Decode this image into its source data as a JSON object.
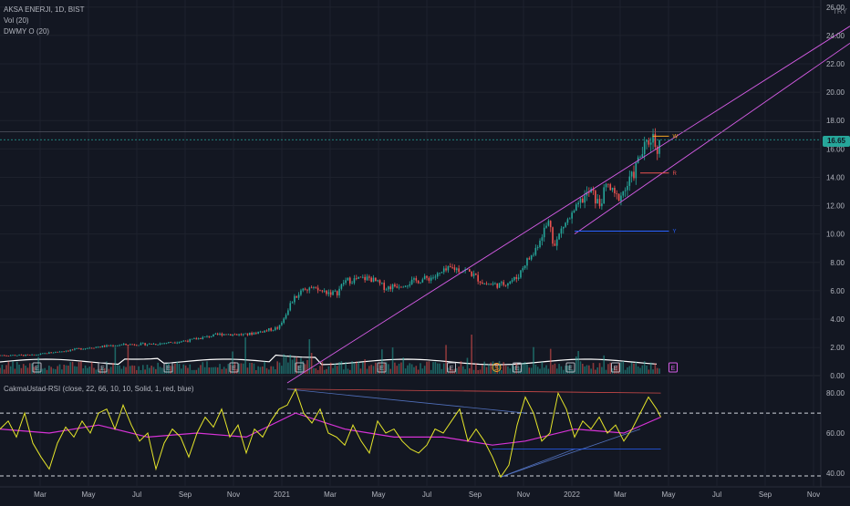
{
  "header": {
    "symbol_line": "AKSA ENERJI, 1D, BIST",
    "vol_line": "Vol (20)",
    "dwmy_line": "DWMY O (20)",
    "rsi_line": "CakmaUstad-RSI (close, 22, 66, 10, 10, Solid, 1, red, blue)",
    "currency": "TRY",
    "last_price": "16.65"
  },
  "colors": {
    "background": "#131722",
    "axis_text": "#b2b5be",
    "grid": "#1e222d",
    "up": "#26a69a",
    "down": "#ef5350",
    "channel": "#d65ce6",
    "ma": "#ffffff",
    "rsi": "#e6e62a",
    "rsi_ma": "#d633d6",
    "level_w": "#f5a623",
    "level_r": "#ef5350",
    "level_y": "#2962ff",
    "price_badge": "#26a69a"
  },
  "chart_data": [
    {
      "type": "line",
      "name": "price",
      "x_axis": [
        "Mar",
        "May",
        "Jul",
        "Sep",
        "Nov",
        "2021",
        "Mar",
        "May",
        "Jul",
        "Sep",
        "Nov",
        "2022",
        "Mar",
        "May",
        "Jul",
        "Sep",
        "Nov"
      ],
      "x_range": [
        0,
        1000
      ],
      "y_ticks": [
        "26.00",
        "24.00",
        "22.00",
        "20.00",
        "18.00",
        "16.00",
        "14.00",
        "12.00",
        "10.00",
        "8.00",
        "6.00",
        "4.00",
        "2.00",
        "0.00"
      ],
      "ylim": [
        -0.5,
        26.5
      ],
      "points": [
        [
          0,
          1.45
        ],
        [
          40,
          1.45
        ],
        [
          70,
          1.7
        ],
        [
          110,
          2.0
        ],
        [
          150,
          2.2
        ],
        [
          190,
          2.25
        ],
        [
          230,
          2.5
        ],
        [
          270,
          2.95
        ],
        [
          300,
          2.9
        ],
        [
          340,
          3.4
        ],
        [
          355,
          5.2
        ],
        [
          370,
          6.2
        ],
        [
          390,
          6.0
        ],
        [
          410,
          5.8
        ],
        [
          420,
          6.7
        ],
        [
          450,
          6.9
        ],
        [
          470,
          6.2
        ],
        [
          500,
          6.6
        ],
        [
          530,
          7.0
        ],
        [
          550,
          7.6
        ],
        [
          570,
          7.4
        ],
        [
          590,
          6.5
        ],
        [
          610,
          6.4
        ],
        [
          630,
          6.9
        ],
        [
          640,
          8.0
        ],
        [
          650,
          8.6
        ],
        [
          660,
          10.0
        ],
        [
          670,
          11.0
        ],
        [
          675,
          9.0
        ],
        [
          685,
          10.5
        ],
        [
          700,
          11.5
        ],
        [
          710,
          12.5
        ],
        [
          720,
          13.0
        ],
        [
          730,
          12.0
        ],
        [
          740,
          13.5
        ],
        [
          750,
          12.5
        ],
        [
          760,
          13.0
        ],
        [
          770,
          14.0
        ],
        [
          780,
          15.5
        ],
        [
          790,
          16.5
        ],
        [
          795,
          17.0
        ],
        [
          800,
          16.0
        ],
        [
          805,
          16.65
        ]
      ],
      "channel_lines": [
        [
          [
            350,
            -0.5
          ],
          [
            1000,
            24.4
          ]
        ],
        [
          [
            700,
            10.0
          ],
          [
            1000,
            23.2
          ]
        ]
      ],
      "levels": [
        {
          "label": "W",
          "value": 16.9,
          "x_start": 795,
          "x_end": 815,
          "color": "#f5a623"
        },
        {
          "label": "R",
          "value": 14.3,
          "x_start": 780,
          "x_end": 815,
          "color": "#ef5350"
        },
        {
          "label": "Y",
          "value": 10.2,
          "x_start": 700,
          "x_end": 815,
          "color": "#2962ff"
        }
      ]
    },
    {
      "type": "bar",
      "name": "volume",
      "earnings_labels": [
        "E",
        "E",
        "E",
        "E",
        "E",
        "E",
        "E",
        "E",
        "S",
        "E",
        "E",
        "E"
      ],
      "earnings_x": [
        45,
        125,
        205,
        285,
        365,
        465,
        550,
        630,
        605,
        695,
        750,
        820
      ]
    },
    {
      "type": "line",
      "name": "rsi",
      "y_ticks": [
        "80.00",
        "60.00",
        "40.00"
      ],
      "ylim": [
        34,
        86
      ],
      "dashed_levels": [
        70,
        30
      ],
      "rsi": [
        [
          0,
          62
        ],
        [
          10,
          66
        ],
        [
          20,
          58
        ],
        [
          30,
          70
        ],
        [
          40,
          55
        ],
        [
          50,
          48
        ],
        [
          60,
          42
        ],
        [
          70,
          55
        ],
        [
          80,
          63
        ],
        [
          90,
          58
        ],
        [
          100,
          66
        ],
        [
          110,
          60
        ],
        [
          120,
          70
        ],
        [
          130,
          72
        ],
        [
          140,
          62
        ],
        [
          150,
          74
        ],
        [
          160,
          64
        ],
        [
          170,
          56
        ],
        [
          180,
          60
        ],
        [
          190,
          42
        ],
        [
          200,
          55
        ],
        [
          210,
          62
        ],
        [
          220,
          58
        ],
        [
          230,
          48
        ],
        [
          240,
          60
        ],
        [
          250,
          68
        ],
        [
          260,
          63
        ],
        [
          270,
          72
        ],
        [
          280,
          58
        ],
        [
          290,
          64
        ],
        [
          300,
          50
        ],
        [
          310,
          62
        ],
        [
          320,
          58
        ],
        [
          330,
          66
        ],
        [
          340,
          72
        ],
        [
          350,
          74
        ],
        [
          360,
          82
        ],
        [
          370,
          70
        ],
        [
          380,
          65
        ],
        [
          390,
          72
        ],
        [
          400,
          60
        ],
        [
          410,
          58
        ],
        [
          420,
          54
        ],
        [
          430,
          64
        ],
        [
          440,
          56
        ],
        [
          450,
          50
        ],
        [
          460,
          66
        ],
        [
          470,
          60
        ],
        [
          480,
          62
        ],
        [
          490,
          56
        ],
        [
          500,
          52
        ],
        [
          510,
          50
        ],
        [
          520,
          54
        ],
        [
          530,
          62
        ],
        [
          540,
          60
        ],
        [
          550,
          66
        ],
        [
          560,
          72
        ],
        [
          570,
          56
        ],
        [
          580,
          62
        ],
        [
          590,
          56
        ],
        [
          600,
          48
        ],
        [
          610,
          38
        ],
        [
          620,
          44
        ],
        [
          630,
          64
        ],
        [
          640,
          78
        ],
        [
          650,
          70
        ],
        [
          660,
          56
        ],
        [
          670,
          60
        ],
        [
          680,
          80
        ],
        [
          690,
          72
        ],
        [
          700,
          58
        ],
        [
          710,
          66
        ],
        [
          720,
          62
        ],
        [
          730,
          68
        ],
        [
          740,
          60
        ],
        [
          750,
          64
        ],
        [
          760,
          56
        ],
        [
          770,
          62
        ],
        [
          780,
          70
        ],
        [
          790,
          78
        ],
        [
          800,
          72
        ],
        [
          805,
          68
        ]
      ],
      "rsi_ma": [
        [
          0,
          62
        ],
        [
          60,
          60
        ],
        [
          120,
          64
        ],
        [
          180,
          58
        ],
        [
          240,
          60
        ],
        [
          300,
          58
        ],
        [
          360,
          70
        ],
        [
          420,
          62
        ],
        [
          480,
          58
        ],
        [
          540,
          58
        ],
        [
          600,
          54
        ],
        [
          640,
          56
        ],
        [
          700,
          62
        ],
        [
          760,
          60
        ],
        [
          805,
          68
        ]
      ]
    }
  ]
}
